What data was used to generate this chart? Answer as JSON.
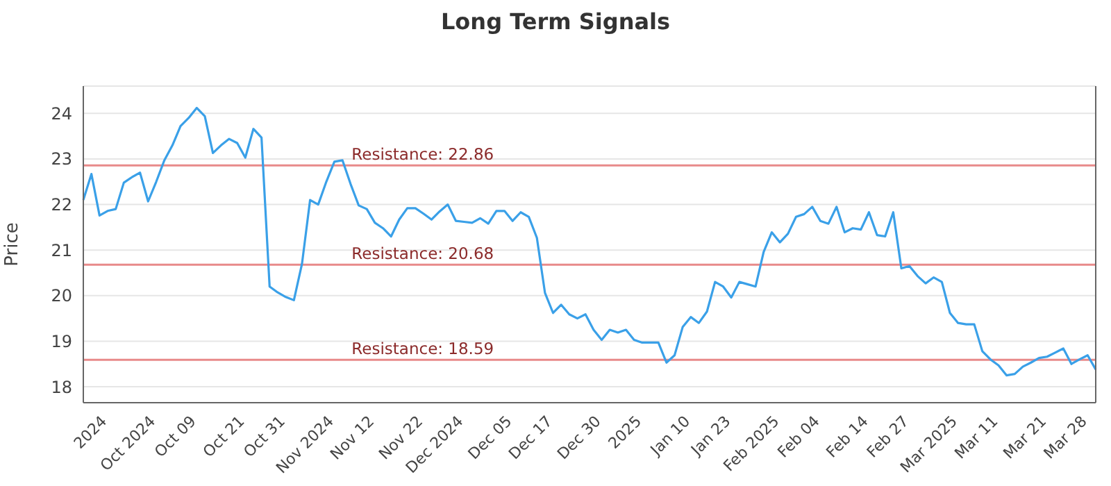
{
  "chart_data": {
    "type": "line",
    "title": "Long Term Signals",
    "ylabel": "Price",
    "categories": [
      null,
      null,
      null,
      "2024",
      null,
      null,
      null,
      null,
      null,
      "Oct 2024",
      null,
      null,
      null,
      null,
      "Oct 09",
      null,
      null,
      null,
      null,
      null,
      "Oct 21",
      null,
      null,
      null,
      null,
      "Oct 31",
      null,
      null,
      null,
      null,
      null,
      "Nov 2024",
      null,
      null,
      null,
      null,
      "Nov 12",
      null,
      null,
      null,
      null,
      null,
      "Nov 22",
      null,
      null,
      null,
      null,
      "Dec 2024",
      null,
      null,
      null,
      null,
      null,
      "Dec 05",
      null,
      null,
      null,
      null,
      "Dec 17",
      null,
      null,
      null,
      null,
      null,
      "Dec 30",
      null,
      null,
      null,
      null,
      "2025",
      null,
      null,
      null,
      null,
      null,
      "Jan 10",
      null,
      null,
      null,
      null,
      "Jan 23",
      null,
      null,
      null,
      null,
      null,
      "Feb 2025",
      null,
      null,
      null,
      null,
      "Feb 04",
      null,
      null,
      null,
      null,
      null,
      "Feb 14",
      null,
      null,
      null,
      null,
      "Feb 27",
      null,
      null,
      null,
      null,
      null,
      "Mar 2025",
      null,
      null,
      null,
      null,
      "Mar 11",
      null,
      null,
      null,
      null,
      null,
      "Mar 21",
      null,
      null,
      null,
      null,
      "Mar 28",
      null
    ],
    "series": [
      {
        "color": "#3aa0e8",
        "values": [
          22.1,
          22.67,
          21.76,
          21.86,
          21.9,
          22.48,
          22.6,
          22.7,
          22.07,
          22.5,
          22.97,
          23.3,
          23.72,
          23.9,
          24.12,
          23.94,
          23.13,
          23.3,
          23.44,
          23.35,
          23.03,
          23.66,
          23.47,
          20.2,
          20.07,
          19.97,
          19.9,
          20.7,
          22.1,
          22.0,
          22.5,
          22.94,
          22.97,
          22.45,
          21.98,
          21.9,
          21.6,
          21.48,
          21.3,
          21.67,
          21.92,
          21.92,
          21.8,
          21.67,
          21.85,
          22.0,
          21.64,
          21.62,
          21.6,
          21.7,
          21.58,
          21.86,
          21.86,
          21.64,
          21.83,
          21.73,
          21.27,
          20.06,
          19.62,
          19.8,
          19.59,
          19.5,
          19.59,
          19.25,
          19.03,
          19.25,
          19.19,
          19.25,
          19.03,
          18.97,
          18.97,
          18.97,
          18.53,
          18.69,
          19.31,
          19.53,
          19.4,
          19.65,
          20.3,
          20.2,
          19.96,
          20.3,
          20.25,
          20.2,
          20.96,
          21.39,
          21.17,
          21.36,
          21.73,
          21.79,
          21.95,
          21.64,
          21.58,
          21.95,
          21.39,
          21.48,
          21.45,
          21.83,
          21.33,
          21.3,
          21.83,
          20.6,
          20.65,
          20.43,
          20.27,
          20.4,
          20.3,
          19.62,
          19.4,
          19.37,
          19.37,
          18.78,
          18.6,
          18.47,
          18.25,
          18.28,
          18.44,
          18.53,
          18.63,
          18.66,
          18.75,
          18.84,
          18.5,
          18.6,
          18.69,
          18.38
        ]
      }
    ],
    "ylim": [
      17.65,
      24.6
    ],
    "yticks": [
      18,
      19,
      20,
      21,
      22,
      23,
      24
    ],
    "grid": "y",
    "legend": false,
    "marker": "none",
    "line_style": "solid",
    "ref_lines": [
      {
        "axis": "y",
        "value": 22.86,
        "label": "Resistance: 22.86",
        "color": "#e88a8a"
      },
      {
        "axis": "y",
        "value": 20.68,
        "label": "Resistance: 20.68",
        "color": "#e88a8a"
      },
      {
        "axis": "y",
        "value": 18.59,
        "label": "Resistance: 18.59",
        "color": "#e88a8a"
      }
    ]
  }
}
